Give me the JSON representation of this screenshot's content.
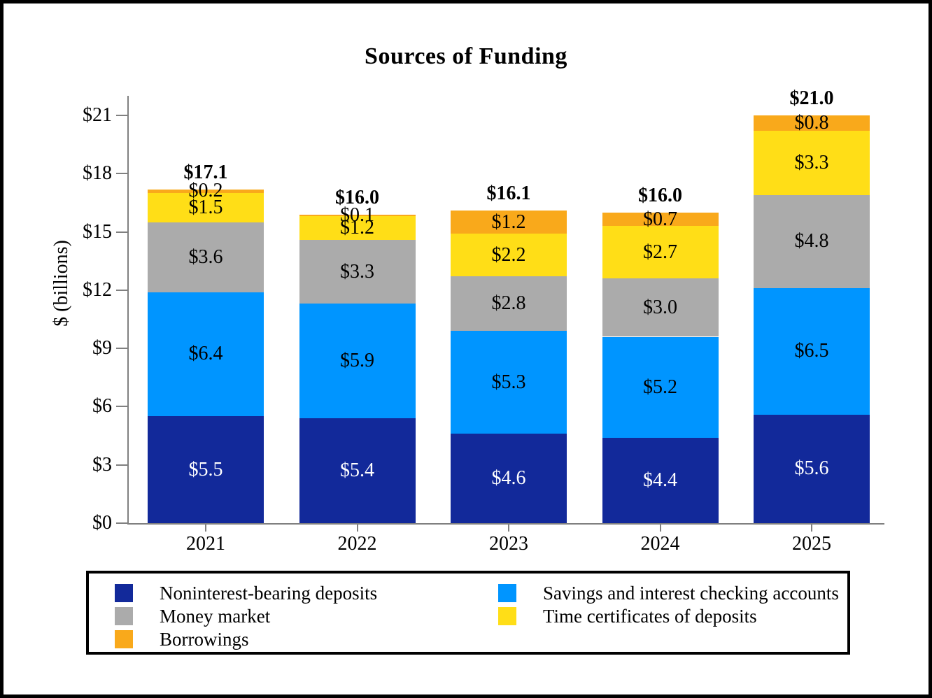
{
  "title": "Sources of Funding",
  "y_axis": {
    "label": "$ (billions)",
    "tick_prefix": "$",
    "tick_values": [
      0,
      3,
      6,
      9,
      12,
      15,
      18,
      21
    ]
  },
  "chart_data": {
    "type": "bar",
    "stacked": true,
    "title": "Sources of Funding",
    "xlabel": "",
    "ylabel": "$ (billions)",
    "ylim": [
      0,
      22
    ],
    "grid": false,
    "legend_position": "bottom",
    "value_prefix": "$",
    "categories": [
      "2021",
      "2022",
      "2023",
      "2024",
      "2025"
    ],
    "series": [
      {
        "name": "Noninterest-bearing deposits",
        "color": "#12299A",
        "label_color": "#FFFFFF",
        "values": [
          5.5,
          5.4,
          4.6,
          4.4,
          5.6
        ]
      },
      {
        "name": "Savings and interest checking accounts",
        "color": "#0095FF",
        "label_color": "#000000",
        "values": [
          6.4,
          5.9,
          5.3,
          5.2,
          6.5
        ]
      },
      {
        "name": "Money market",
        "color": "#ABABAB",
        "label_color": "#000000",
        "values": [
          3.6,
          3.3,
          2.8,
          3.0,
          4.8
        ]
      },
      {
        "name": "Time certificates of deposits",
        "color": "#FFDE17",
        "label_color": "#000000",
        "values": [
          1.5,
          1.2,
          2.2,
          2.7,
          3.3
        ]
      },
      {
        "name": "Borrowings",
        "color": "#F9A91B",
        "label_color": "#000000",
        "values": [
          0.2,
          0.1,
          1.2,
          0.7,
          0.8
        ]
      }
    ],
    "totals": [
      "$17.1",
      "$16.0",
      "$16.1",
      "$16.0",
      "$21.0"
    ]
  }
}
